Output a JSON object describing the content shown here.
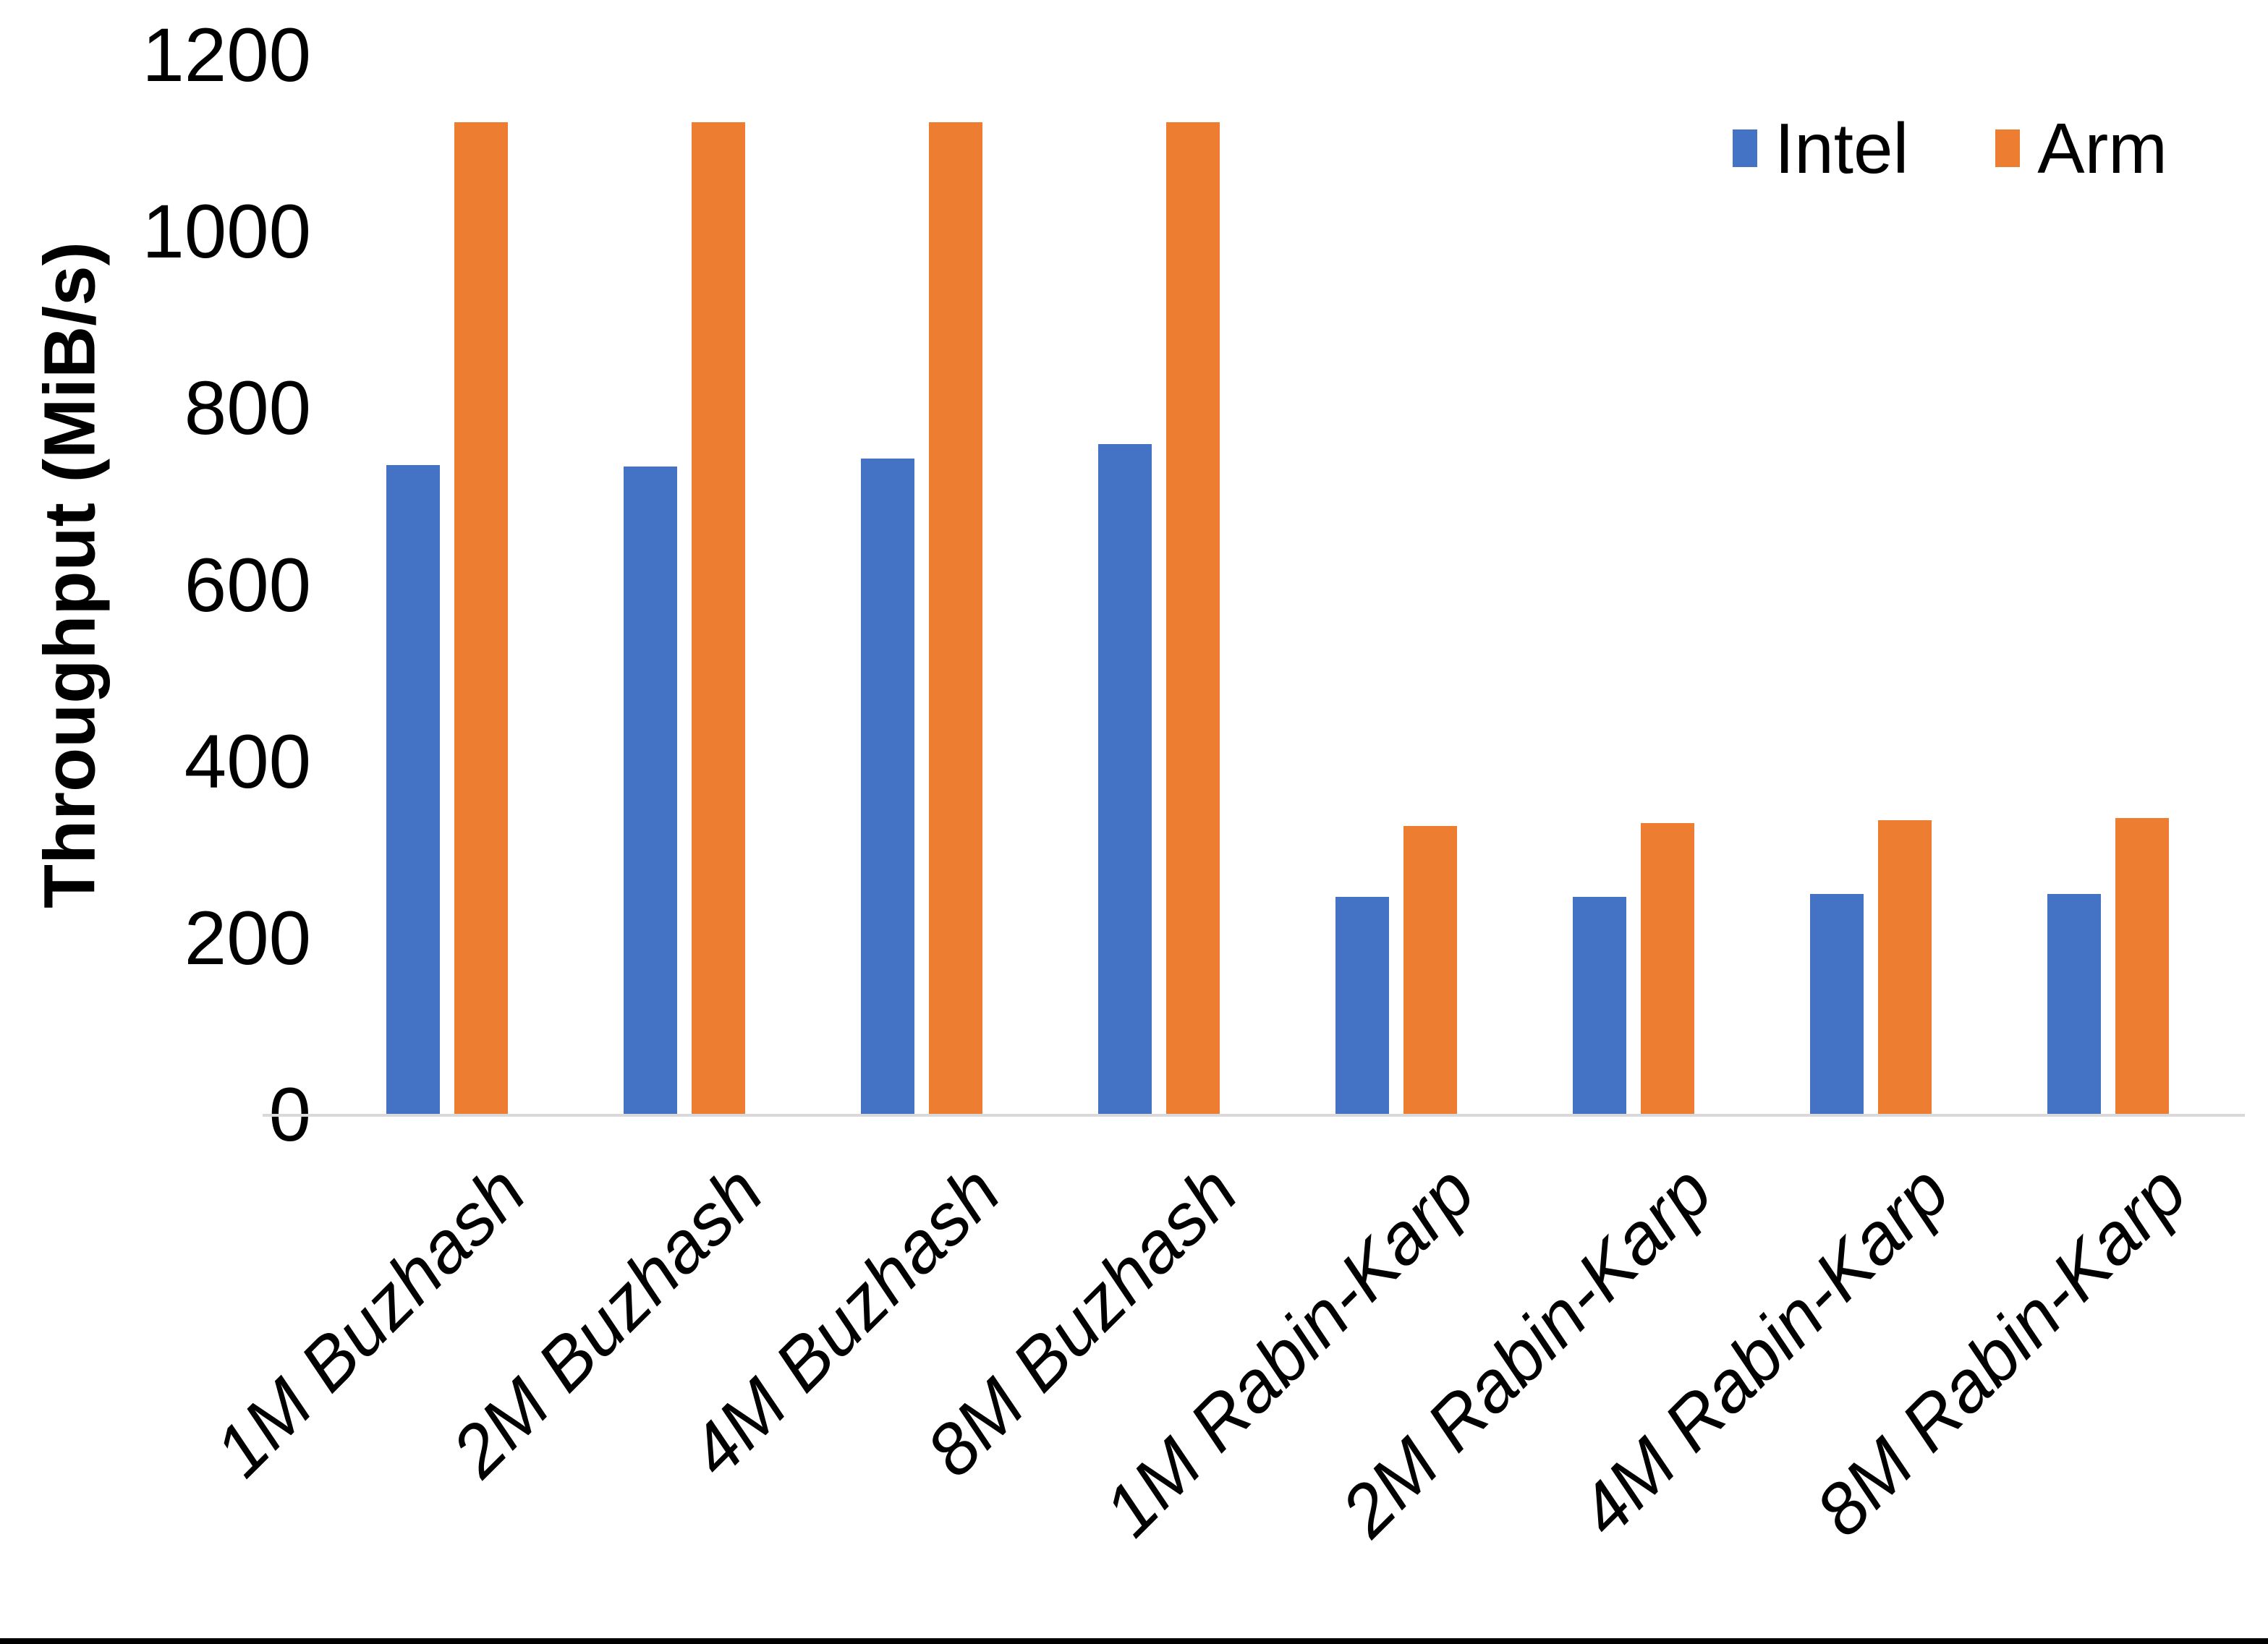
{
  "chart_data": {
    "type": "bar",
    "title": "",
    "xlabel": "",
    "ylabel": "Throughput (MiB/s)",
    "ylim": [
      0,
      1200
    ],
    "ytick_interval": 200,
    "ytick_labels": [
      "0",
      "200",
      "400",
      "600",
      "800",
      "1000",
      "1200"
    ],
    "grid": false,
    "legend_position": "top-right",
    "categories": [
      "1M Buzhash",
      "2M Buzhash",
      "4M Buzhash",
      "8M Buzhash",
      "1M Rabin-Karp",
      "2M Rabin-Karp",
      "4M Rabin-Karp",
      "8M Rabin-Karp"
    ],
    "series": [
      {
        "name": "Intel",
        "color": "#4472C4",
        "values": [
          736,
          735,
          744,
          760,
          247,
          247,
          251,
          251
        ]
      },
      {
        "name": "Arm",
        "color": "#ED7D31",
        "values": [
          1125,
          1125,
          1125,
          1125,
          328,
          331,
          334,
          337
        ]
      }
    ]
  },
  "colors": {
    "axis_line": "#d9d9d9",
    "text": "#000000",
    "bottom_border": "#000000",
    "background": "#ffffff"
  }
}
